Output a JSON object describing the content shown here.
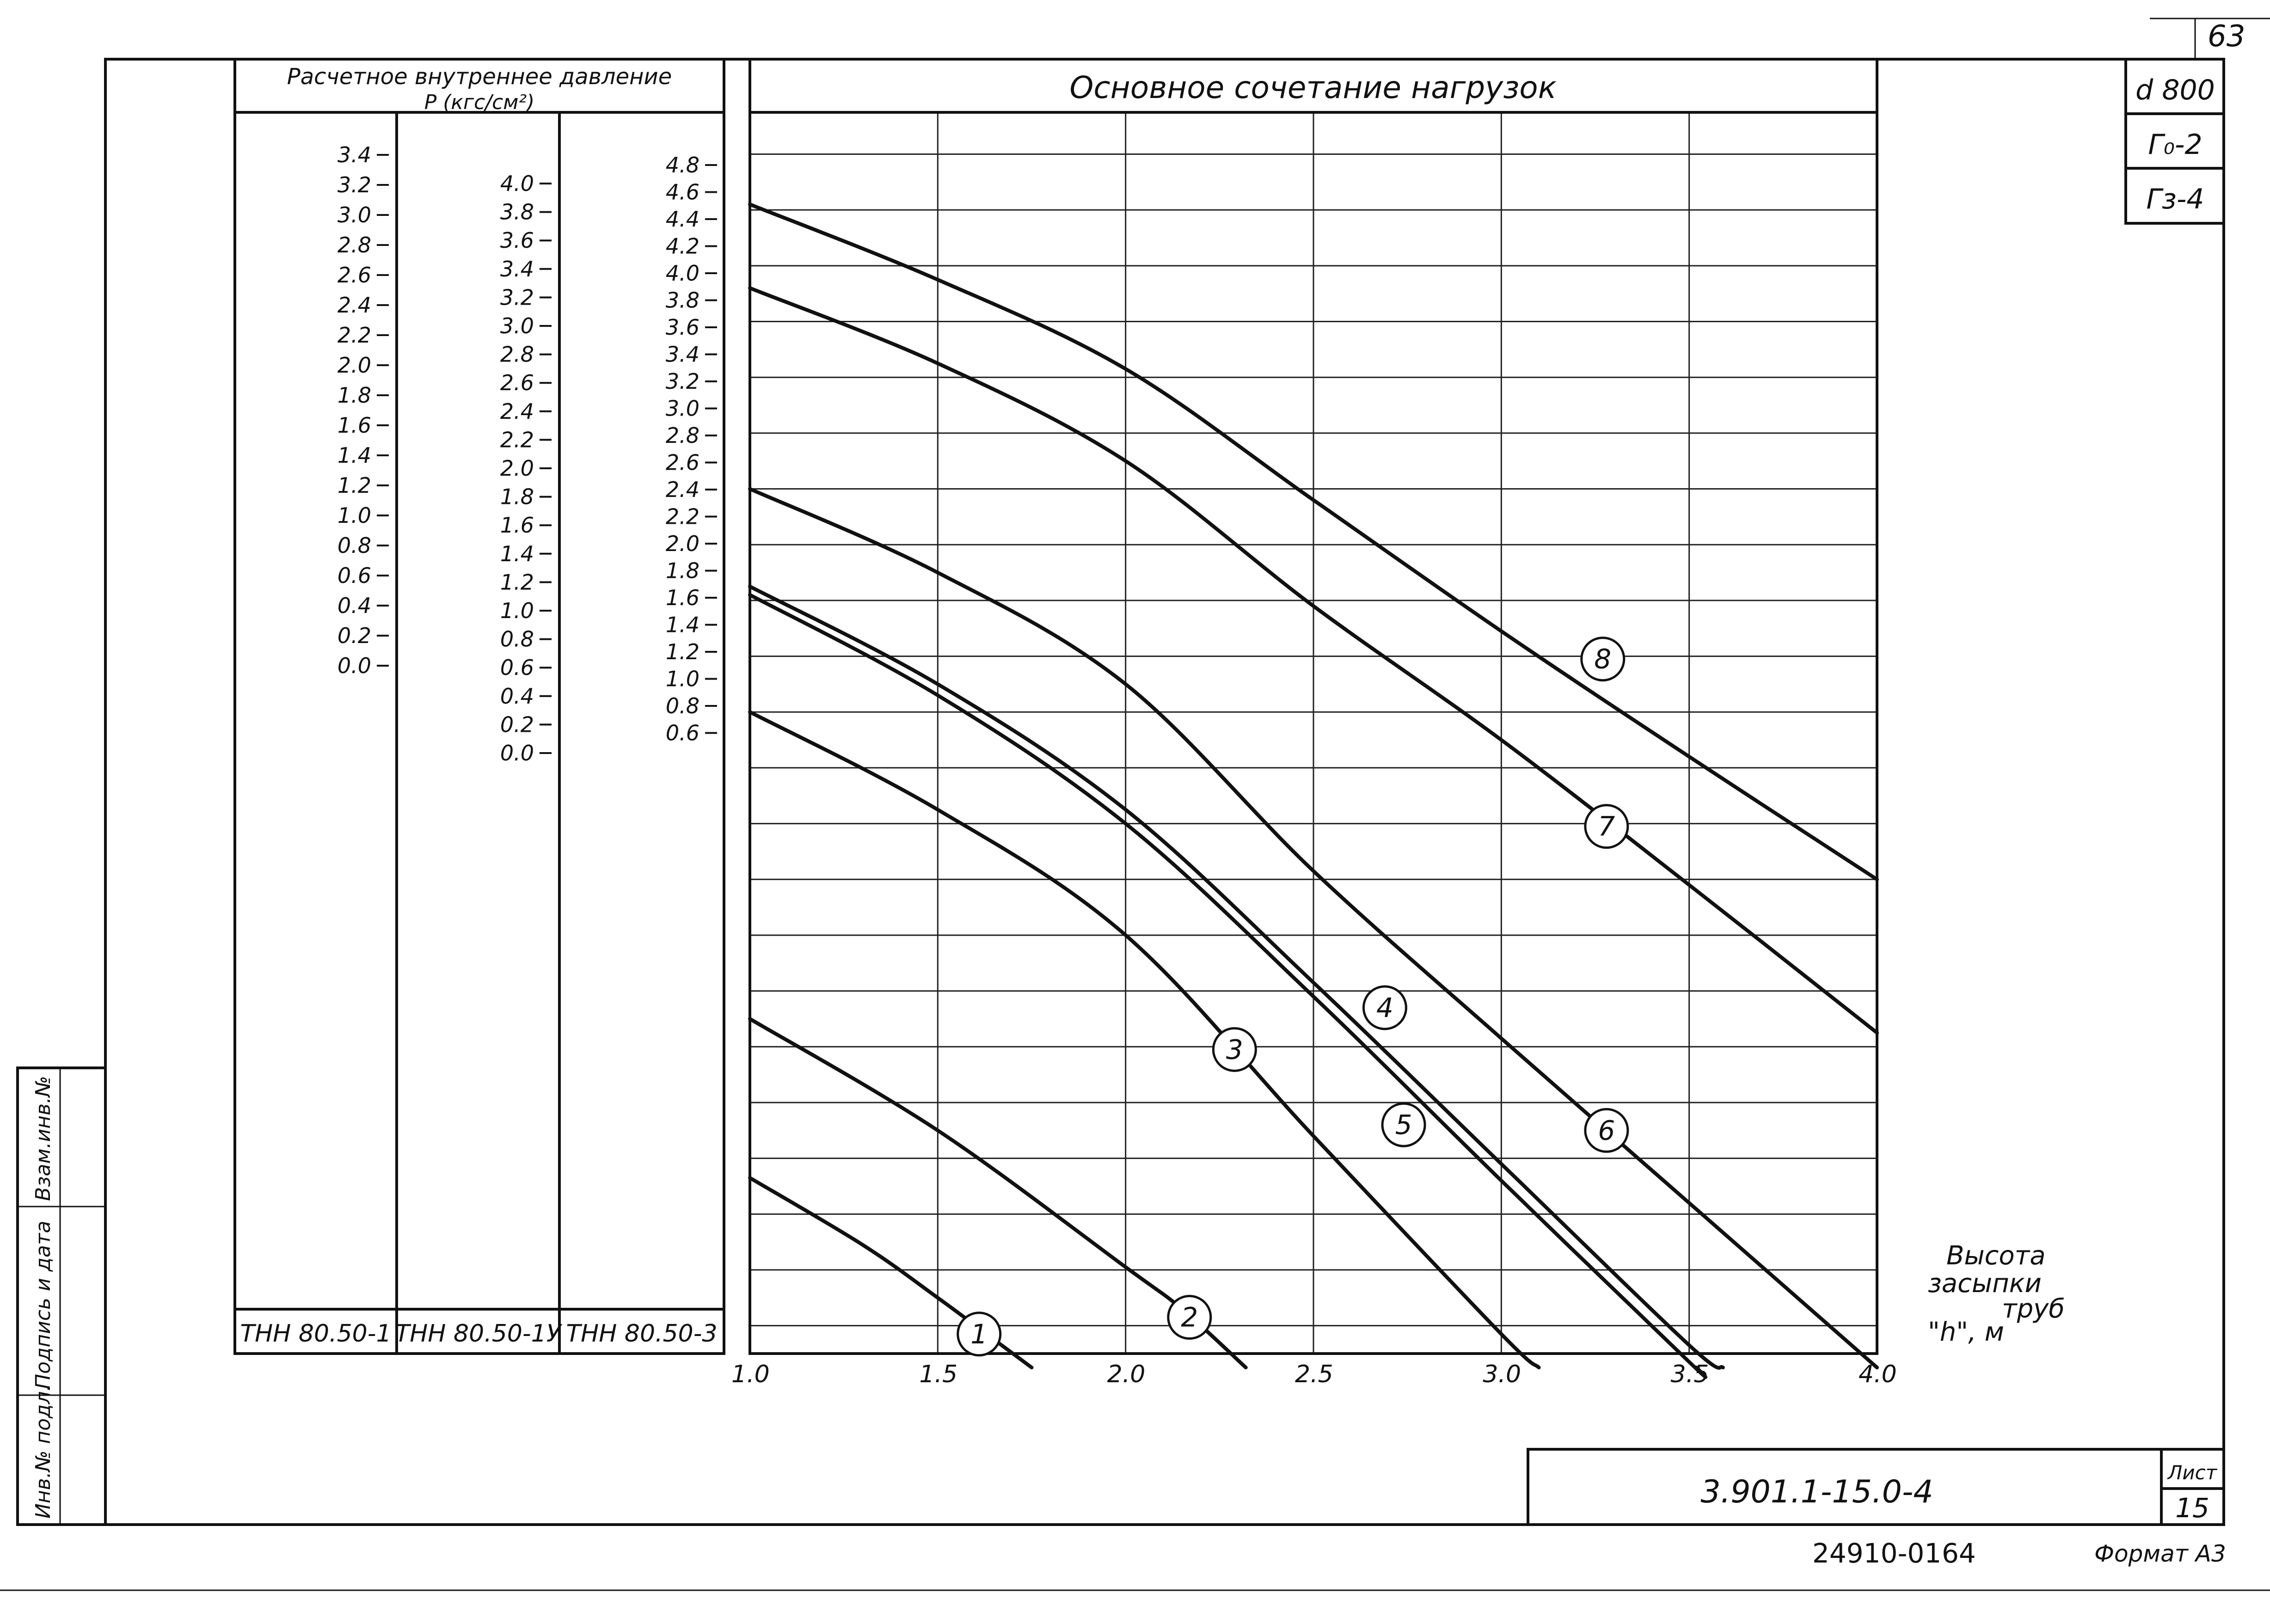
{
  "sheet": {
    "corner_number": "63",
    "stamp": [
      "d 800",
      "Г₀-2",
      "Гз-4"
    ],
    "drawing_code": "3.901.1-15.0-4",
    "sheet_label": "Лист",
    "sheet_number": "15",
    "inventory_code": "24910-01",
    "inventory_page": "64",
    "format_label": "Формат А3",
    "side_labels": [
      "Инв.№ подл.",
      "Подпись и дата",
      "Взам.инв.№"
    ]
  },
  "pressure_table": {
    "header_line1": "Расчетное внутреннее давление",
    "header_line2": "P (кгс/см²)",
    "columns": [
      {
        "name": "ТНН 80.50-1",
        "ticks": [
          "3.4",
          "3.2",
          "3.0",
          "2.8",
          "2.6",
          "2.4",
          "2.2",
          "2.0",
          "1.8",
          "1.6",
          "1.4",
          "1.2",
          "1.0",
          "0.8",
          "0.6",
          "0.4",
          "0.2",
          "0.0"
        ]
      },
      {
        "name": "ТНН 80.50-1У",
        "ticks": [
          "4.0",
          "3.8",
          "3.6",
          "3.4",
          "3.2",
          "3.0",
          "2.8",
          "2.6",
          "2.4",
          "2.2",
          "2.0",
          "1.8",
          "1.6",
          "1.4",
          "1.2",
          "1.0",
          "0.8",
          "0.6",
          "0.4",
          "0.2",
          "0.0"
        ]
      },
      {
        "name": "ТНН 80.50-3",
        "ticks": [
          "4.8",
          "4.6",
          "4.4",
          "4.2",
          "4.0",
          "3.8",
          "3.6",
          "3.4",
          "3.2",
          "3.0",
          "2.8",
          "2.6",
          "2.4",
          "2.2",
          "2.0",
          "1.8",
          "1.6",
          "1.4",
          "1.2",
          "1.0",
          "0.8",
          "0.6"
        ]
      }
    ]
  },
  "chart_data": {
    "type": "line",
    "title": "Основное сочетание нагрузок",
    "xlabel_lines": [
      "Высота",
      "засыпки",
      "труб",
      "\"h\", м"
    ],
    "x_ticks": [
      "1.0",
      "1.5",
      "2.0",
      "2.5",
      "3.0",
      "3.5",
      "4.0"
    ],
    "xlim": [
      1.0,
      4.0
    ],
    "ylim": [
      0.5,
      4.95
    ],
    "y_unit_column": "ТНН 80.50-3",
    "grid": true,
    "series": [
      {
        "name": "1",
        "label_at": [
          1.61,
          0.57
        ],
        "points": [
          [
            1.0,
            1.13
          ],
          [
            1.3,
            0.89
          ],
          [
            1.5,
            0.7
          ],
          [
            1.65,
            0.55
          ],
          [
            1.75,
            0.45
          ]
        ]
      },
      {
        "name": "2",
        "label_at": [
          2.17,
          0.63
        ],
        "points": [
          [
            1.0,
            1.7
          ],
          [
            1.5,
            1.3
          ],
          [
            2.0,
            0.81
          ],
          [
            2.15,
            0.66
          ],
          [
            2.32,
            0.45
          ]
        ]
      },
      {
        "name": "3",
        "label_at": [
          2.29,
          1.59
        ],
        "points": [
          [
            1.0,
            2.8
          ],
          [
            1.5,
            2.45
          ],
          [
            2.0,
            2.0
          ],
          [
            2.5,
            1.28
          ],
          [
            3.0,
            0.57
          ],
          [
            3.1,
            0.45
          ]
        ]
      },
      {
        "name": "4",
        "label_at": [
          2.69,
          1.74
        ],
        "points": [
          [
            1.0,
            3.25
          ],
          [
            1.5,
            2.9
          ],
          [
            2.0,
            2.45
          ],
          [
            2.5,
            1.83
          ],
          [
            3.0,
            1.18
          ],
          [
            3.5,
            0.53
          ],
          [
            3.59,
            0.45
          ]
        ]
      },
      {
        "name": "5",
        "label_at": [
          2.74,
          1.32
        ],
        "points": [
          [
            1.0,
            3.22
          ],
          [
            1.5,
            2.86
          ],
          [
            2.0,
            2.4
          ],
          [
            2.5,
            1.78
          ],
          [
            3.0,
            1.12
          ],
          [
            3.5,
            0.47
          ],
          [
            3.52,
            0.45
          ]
        ]
      },
      {
        "name": "6",
        "label_at": [
          3.28,
          1.3
        ],
        "points": [
          [
            1.0,
            3.6
          ],
          [
            1.5,
            3.3
          ],
          [
            2.0,
            2.9
          ],
          [
            2.5,
            2.23
          ],
          [
            3.0,
            1.63
          ],
          [
            3.5,
            1.04
          ],
          [
            4.0,
            0.45
          ]
        ]
      },
      {
        "name": "7",
        "label_at": [
          3.28,
          2.39
        ],
        "points": [
          [
            1.0,
            4.32
          ],
          [
            1.5,
            4.05
          ],
          [
            2.0,
            3.7
          ],
          [
            2.5,
            3.18
          ],
          [
            3.0,
            2.7
          ],
          [
            3.5,
            2.18
          ],
          [
            4.0,
            1.65
          ]
        ]
      },
      {
        "name": "8",
        "label_at": [
          3.27,
          2.99
        ],
        "points": [
          [
            1.0,
            4.62
          ],
          [
            1.5,
            4.35
          ],
          [
            2.0,
            4.03
          ],
          [
            2.5,
            3.56
          ],
          [
            3.0,
            3.09
          ],
          [
            3.5,
            2.64
          ],
          [
            4.0,
            2.2
          ]
        ]
      }
    ]
  }
}
